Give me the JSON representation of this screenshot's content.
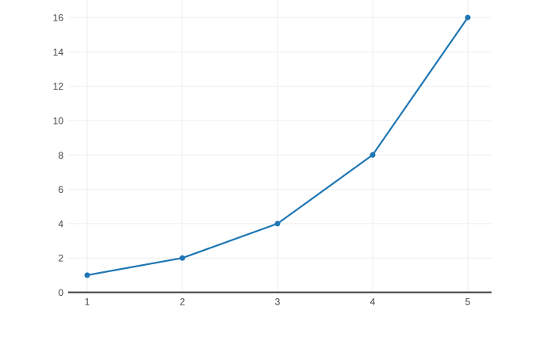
{
  "page": {
    "background_color": "#ffffff"
  },
  "chart_data": {
    "type": "line",
    "mode": "lines+markers",
    "x": [
      1,
      2,
      3,
      4,
      5
    ],
    "y": [
      1,
      2,
      4,
      8,
      16
    ],
    "x_tick_labels": [
      "1",
      "2",
      "3",
      "4",
      "5"
    ],
    "y_tick_labels": [
      "0",
      "2",
      "4",
      "6",
      "8",
      "10",
      "12",
      "14",
      "16"
    ],
    "x_ticks": [
      1,
      2,
      3,
      4,
      5
    ],
    "y_ticks": [
      0,
      2,
      4,
      6,
      8,
      10,
      12,
      14,
      16
    ],
    "xlim": [
      0.8,
      5.25
    ],
    "ylim": [
      0,
      17.02
    ],
    "grid": true,
    "legend": false,
    "line_color": "#1f77b4",
    "marker_color": "#1f77b4",
    "grid_color": "#eeeeee",
    "zeroline_color": "#444444",
    "tick_label_color": "#444444",
    "plot_background": "#ffffff"
  }
}
